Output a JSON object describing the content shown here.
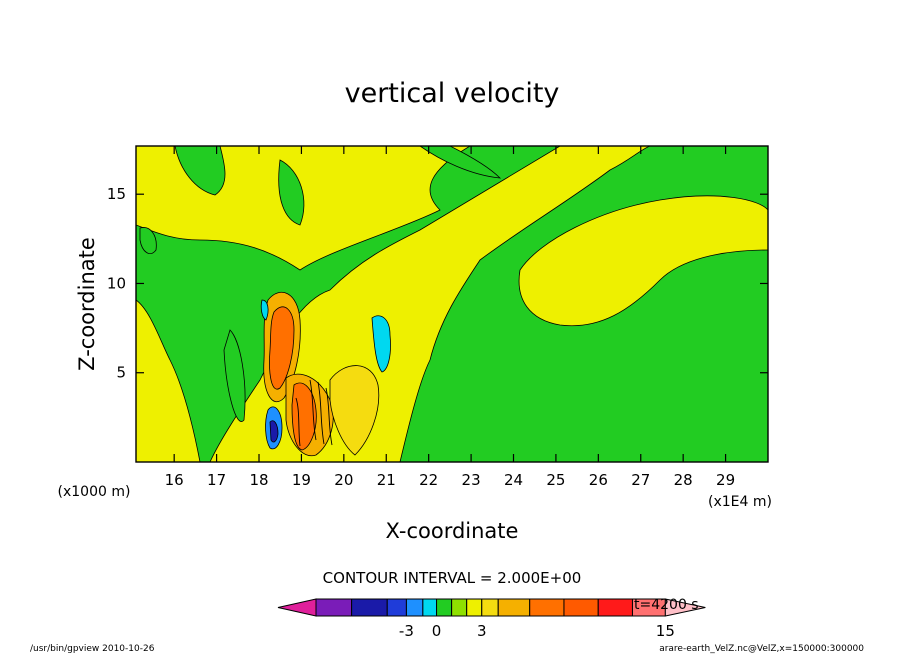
{
  "chart_data": {
    "type": "heatmap",
    "title": "vertical velocity",
    "xlabel": "X-coordinate",
    "ylabel": "Z-coordinate",
    "x_multiplier": "(x1E4 m)",
    "y_multiplier": "(x1000 m)",
    "xlim": [
      15.1,
      30.0
    ],
    "ylim": [
      0.0,
      17.7
    ],
    "x_ticks": [
      16,
      17,
      18,
      19,
      20,
      21,
      22,
      23,
      24,
      25,
      26,
      27,
      28,
      29
    ],
    "y_ticks": [
      5,
      10,
      15
    ],
    "contour_interval_text": "CONTOUR INTERVAL = 2.000E+00",
    "time_label": "t=4200 s",
    "colorbar": {
      "levels": [
        -11,
        -9,
        -7,
        -5,
        -3,
        -1,
        0,
        1,
        2,
        3,
        5,
        7,
        9,
        11,
        13,
        15
      ],
      "colors": [
        "#e0209b",
        "#7a1cb8",
        "#1a1aa8",
        "#1f3cd9",
        "#1e90ff",
        "#00d8f0",
        "#22cc22",
        "#8fe000",
        "#eef000",
        "#f5dc10",
        "#f5b000",
        "#ff7000",
        "#ff5a00",
        "#ff1a1a",
        "#ff7070",
        "#ffc0c8"
      ],
      "tick_labels": [
        "-3",
        "0",
        "3",
        "15"
      ]
    },
    "features": [
      {
        "kind": "updraft",
        "x": 18.6,
        "z": 7.3,
        "w": 9
      },
      {
        "kind": "updraft",
        "x": 19.0,
        "z": 3.0,
        "w": 9
      },
      {
        "kind": "downdraft",
        "x": 18.3,
        "z": 1.5,
        "w": -3
      }
    ]
  },
  "footer": {
    "left": "/usr/bin/gpview  2010-10-26",
    "right": "arare-earth_VelZ.nc@VelZ,x=150000:300000"
  }
}
